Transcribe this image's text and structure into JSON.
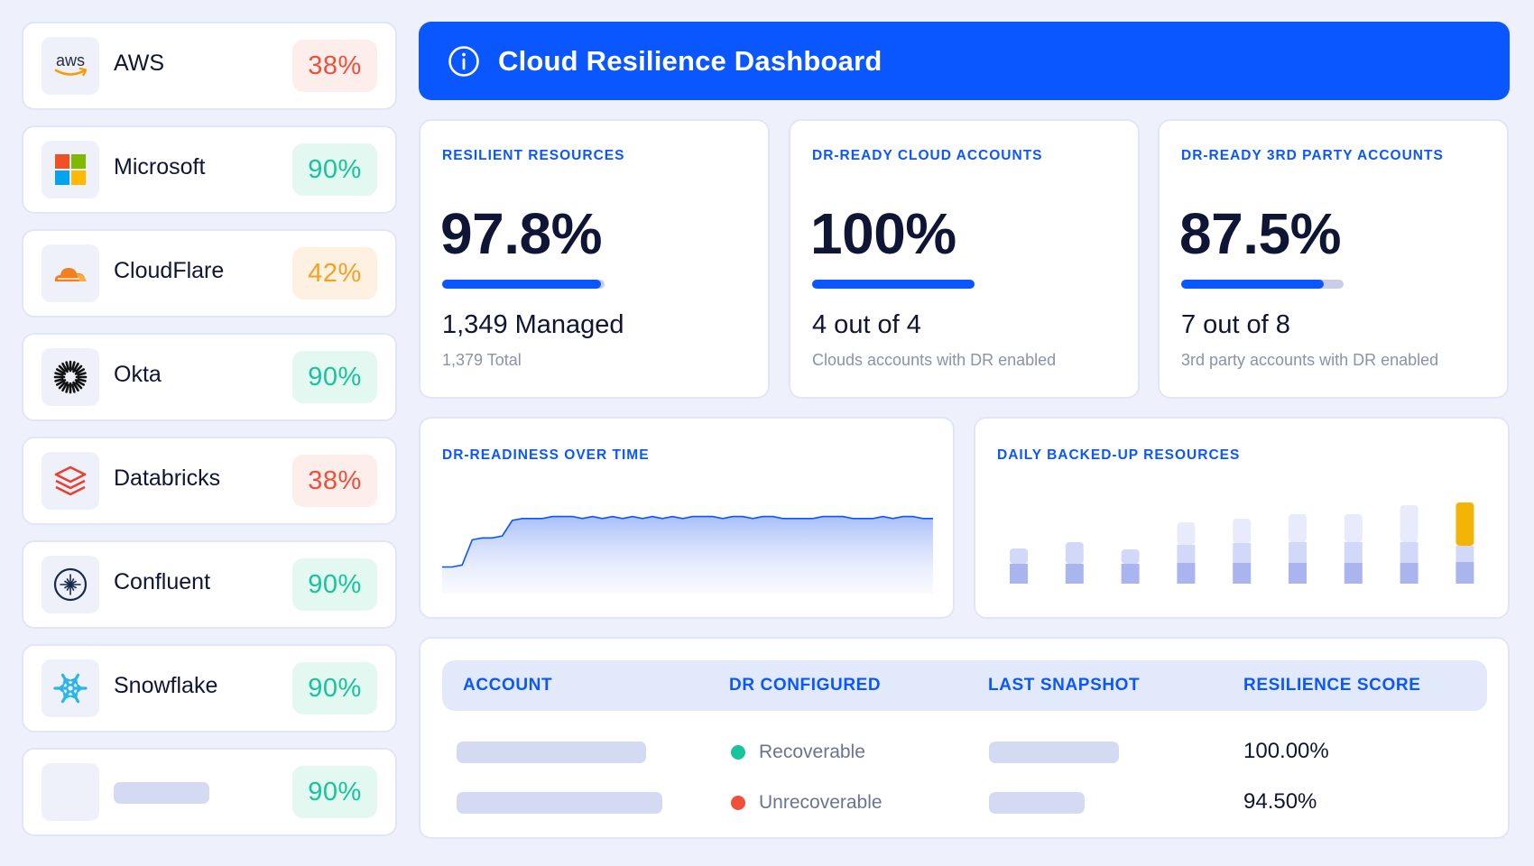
{
  "colors": {
    "accent": "#0a57ff",
    "red": "#f0503a",
    "green": "#17c49b",
    "amber": "#f5a121",
    "placeholder": "#d5daf3"
  },
  "providers": [
    {
      "name": "AWS",
      "score": "38%",
      "status": "red",
      "icon": "aws-logo-icon"
    },
    {
      "name": "Microsoft",
      "score": "90%",
      "status": "green",
      "icon": "microsoft-logo-icon"
    },
    {
      "name": "CloudFlare",
      "score": "42%",
      "status": "amber",
      "icon": "cloudflare-logo-icon"
    },
    {
      "name": "Okta",
      "score": "90%",
      "status": "green",
      "icon": "okta-logo-icon"
    },
    {
      "name": "Databricks",
      "score": "38%",
      "status": "red",
      "icon": "databricks-logo-icon"
    },
    {
      "name": "Confluent",
      "score": "90%",
      "status": "green",
      "icon": "confluent-logo-icon"
    },
    {
      "name": "Snowflake",
      "score": "90%",
      "status": "green",
      "icon": "snowflake-logo-icon"
    },
    {
      "name": "",
      "score": "90%",
      "status": "green",
      "icon": "placeholder-logo"
    }
  ],
  "aws_logo_text": "aws",
  "header": {
    "title": "Cloud Resilience Dashboard",
    "icon": "info-icon"
  },
  "stats": [
    {
      "label": "RESILIENT RESOURCES",
      "value": "97.8%",
      "progress": 0.978,
      "sub": "1,349 Managed",
      "desc": "1,379 Total"
    },
    {
      "label": "DR-READY CLOUD ACCOUNTS",
      "value": "100%",
      "progress": 1.0,
      "sub": "4 out of 4",
      "desc": "Clouds accounts with DR enabled"
    },
    {
      "label": "DR-READY 3RD PARTY ACCOUNTS",
      "value": "87.5%",
      "progress": 0.875,
      "sub": "7 out of 8",
      "desc": "3rd party accounts with DR enabled"
    }
  ],
  "readiness_chart": {
    "label": "DR-READINESS OVER TIME",
    "chart_data": {
      "type": "area",
      "values": [
        70,
        70,
        71,
        84,
        85,
        85,
        86,
        94,
        95,
        95,
        95,
        96,
        96,
        96,
        95,
        96,
        95,
        96,
        95,
        96,
        95,
        96,
        95,
        96,
        95,
        96,
        96,
        96,
        95,
        96,
        96,
        95,
        96,
        96,
        95,
        95,
        95,
        95,
        96,
        96,
        96,
        95,
        95,
        95,
        96,
        95,
        96,
        96,
        95,
        95
      ],
      "ylim": [
        60,
        100
      ]
    }
  },
  "backup_chart": {
    "label": "DAILY BACKED-UP RESOURCES",
    "chart_data": {
      "type": "bar",
      "stacked": true,
      "series": [
        {
          "values": [
            22,
            22,
            22,
            23,
            23,
            23,
            23,
            23,
            24
          ],
          "color": "#aab4ef"
        },
        {
          "values": [
            17,
            24,
            16,
            20,
            22,
            23,
            23,
            23,
            18
          ],
          "color": "#d2d8f7"
        },
        {
          "values": [
            0,
            0,
            0,
            25,
            27,
            31,
            31,
            41,
            0
          ],
          "color": "#e8ebfb"
        },
        {
          "values": [
            0,
            0,
            0,
            0,
            0,
            0,
            0,
            0,
            48
          ],
          "color": "#f4b307"
        }
      ]
    }
  },
  "table": {
    "headers": [
      "ACCOUNT",
      "DR CONFIGURED",
      "LAST SNAPSHOT",
      "RESILIENCE SCORE"
    ],
    "rows": [
      {
        "status": "Recoverable",
        "status_color": "#17c49b",
        "score": "100.00%"
      },
      {
        "status": "Unrecoverable",
        "status_color": "#f0503a",
        "score": "94.50%"
      }
    ]
  }
}
